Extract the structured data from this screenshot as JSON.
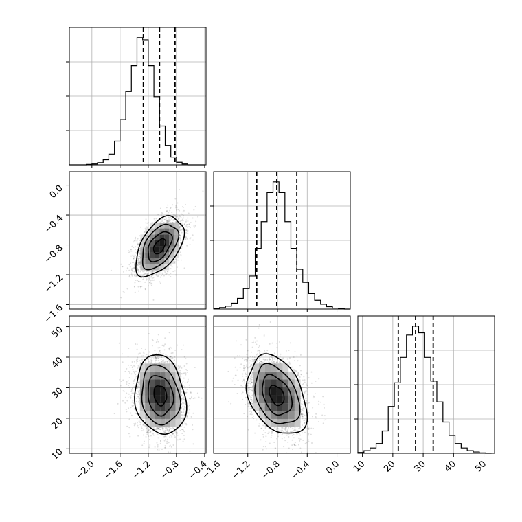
{
  "chart_data": {
    "type": "corner",
    "grid": true,
    "parameters": [
      {
        "ticks": [
          "−2.0",
          "−1.6",
          "−1.2",
          "−0.8",
          "−0.4"
        ],
        "tick_values": [
          -2.0,
          -1.6,
          -1.2,
          -0.8,
          -0.4
        ],
        "range": [
          -2.32,
          -0.38
        ],
        "quantiles": [
          -1.27,
          -1.04,
          -0.82
        ],
        "hist_bins": [
          -2.32,
          -2.24,
          -2.16,
          -2.08,
          -2.0,
          -1.92,
          -1.84,
          -1.76,
          -1.68,
          -1.6,
          -1.52,
          -1.44,
          -1.36,
          -1.28,
          -1.2,
          -1.12,
          -1.04,
          -0.96,
          -0.88,
          -0.8,
          -0.72,
          -0.64,
          -0.56,
          -0.48,
          -0.4
        ],
        "hist_counts": [
          0,
          0,
          0,
          1,
          2,
          5,
          12,
          25,
          55,
          105,
          170,
          230,
          295,
          290,
          230,
          158,
          90,
          45,
          18,
          6,
          2,
          0,
          0,
          0
        ]
      },
      {
        "ticks": [
          "−1.6",
          "−1.2",
          "−0.8",
          "−0.4",
          "0.0"
        ],
        "tick_values": [
          -1.6,
          -1.2,
          -0.8,
          -0.4,
          0.0
        ],
        "range": [
          -1.66,
          0.18
        ],
        "quantiles": [
          -1.08,
          -0.81,
          -0.54
        ],
        "hist_bins": [
          -1.66,
          -1.58,
          -1.5,
          -1.42,
          -1.34,
          -1.26,
          -1.18,
          -1.1,
          -1.02,
          -0.94,
          -0.86,
          -0.78,
          -0.7,
          -0.62,
          -0.54,
          -0.46,
          -0.38,
          -0.3,
          -0.22,
          -0.14,
          -0.06,
          0.02,
          0.1,
          0.18
        ],
        "hist_counts": [
          1,
          3,
          6,
          12,
          22,
          42,
          68,
          125,
          180,
          240,
          262,
          240,
          180,
          125,
          82,
          55,
          32,
          18,
          10,
          5,
          2,
          1,
          0
        ]
      },
      {
        "ticks": [
          "10",
          "20",
          "30",
          "40",
          "50"
        ],
        "tick_values": [
          10,
          20,
          30,
          40,
          50
        ],
        "range": [
          8.5,
          53.5
        ],
        "quantiles": [
          21.8,
          27.5,
          33.3
        ],
        "hist_bins": [
          8.5,
          10.5,
          12.5,
          14.5,
          16.5,
          18.5,
          20.5,
          22.5,
          24.5,
          26.5,
          28.5,
          30.5,
          32.5,
          34.5,
          36.5,
          38.5,
          40.5,
          42.5,
          44.5,
          46.5,
          48.5,
          50.5,
          52.5
        ],
        "hist_counts": [
          2,
          6,
          12,
          22,
          50,
          105,
          158,
          215,
          265,
          285,
          270,
          215,
          162,
          115,
          70,
          40,
          22,
          12,
          6,
          3,
          1,
          0
        ]
      }
    ],
    "pairs": [
      {
        "x_param": 0,
        "y_param": 1,
        "mean": [
          -1.04,
          -0.82
        ],
        "sd": [
          0.17,
          0.2
        ],
        "rho": 0.5
      },
      {
        "x_param": 0,
        "y_param": 2,
        "mean": [
          -1.03,
          27.5
        ],
        "sd": [
          0.18,
          6.5
        ],
        "rho": -0.15
      },
      {
        "x_param": 1,
        "y_param": 2,
        "mean": [
          -0.81,
          27.5
        ],
        "sd": [
          0.2,
          6.5
        ],
        "rho": -0.35
      }
    ]
  }
}
